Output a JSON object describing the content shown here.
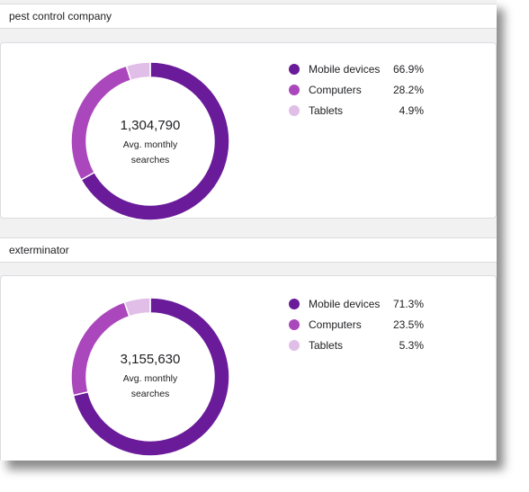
{
  "colors": {
    "mobile": "#6a1b9a",
    "computers": "#ab47bc",
    "tablets": "#e1bee7"
  },
  "panels": [
    {
      "keyword": "pest control company",
      "total": "1,304,790",
      "caption_line1": "Avg. monthly",
      "caption_line2": "searches",
      "legend": [
        {
          "label": "Mobile devices",
          "pct": "66.9%"
        },
        {
          "label": "Computers",
          "pct": "28.2%"
        },
        {
          "label": "Tablets",
          "pct": "4.9%"
        }
      ]
    },
    {
      "keyword": "exterminator",
      "total": "3,155,630",
      "caption_line1": "Avg. monthly",
      "caption_line2": "searches",
      "legend": [
        {
          "label": "Mobile devices",
          "pct": "71.3%"
        },
        {
          "label": "Computers",
          "pct": "23.5%"
        },
        {
          "label": "Tablets",
          "pct": "5.3%"
        }
      ]
    }
  ],
  "chart_data": [
    {
      "type": "pie",
      "categories": [
        "Mobile devices",
        "Computers",
        "Tablets"
      ],
      "values": [
        66.9,
        28.2,
        4.9
      ],
      "total": 1304790
    },
    {
      "type": "pie",
      "categories": [
        "Mobile devices",
        "Computers",
        "Tablets"
      ],
      "values": [
        71.3,
        23.5,
        5.3
      ],
      "total": 3155630
    }
  ]
}
